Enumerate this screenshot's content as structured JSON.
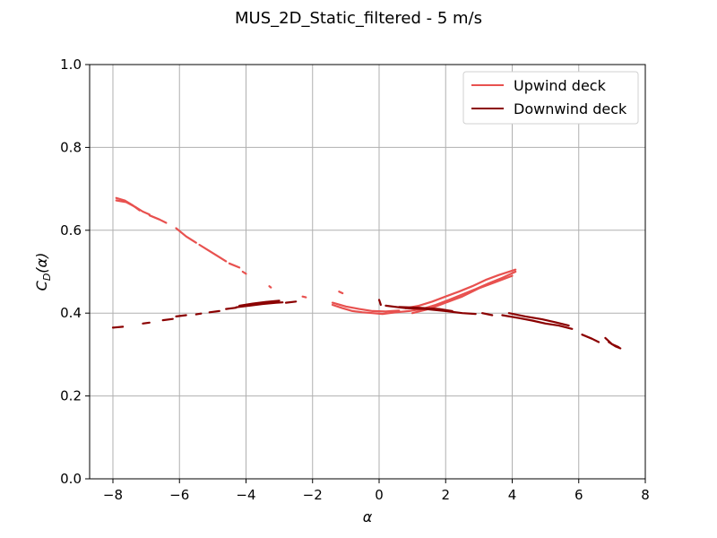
{
  "chart_data": {
    "type": "line",
    "title": "MUS_2D_Static_filtered - 5 m/s",
    "xlabel": "α",
    "ylabel_main": "C",
    "ylabel_sub": "D",
    "ylabel_arg": "(α)",
    "xlim": [
      -8.7,
      8
    ],
    "ylim": [
      0,
      1
    ],
    "xticks": [
      -8,
      -6,
      -4,
      -2,
      0,
      2,
      4,
      6,
      8
    ],
    "xtick_labels": [
      "−8",
      "−6",
      "−4",
      "−2",
      "0",
      "2",
      "4",
      "6",
      "8"
    ],
    "yticks": [
      0,
      0.2,
      0.4,
      0.6,
      0.8,
      1.0
    ],
    "ytick_labels": [
      "0.0",
      "0.2",
      "0.4",
      "0.6",
      "0.8",
      "1.0"
    ],
    "grid": true,
    "legend_position": "top-right",
    "series": [
      {
        "name": "Upwind deck",
        "color": "#e8514f",
        "segments": [
          [
            [
              -7.9,
              0.672
            ],
            [
              -7.6,
              0.668
            ],
            [
              -7.3,
              0.655
            ],
            [
              -7.1,
              0.645
            ],
            [
              -6.9,
              0.638
            ]
          ],
          [
            [
              -7.9,
              0.678
            ],
            [
              -7.65,
              0.672
            ],
            [
              -7.4,
              0.66
            ],
            [
              -7.2,
              0.648
            ]
          ],
          [
            [
              -6.9,
              0.636
            ],
            [
              -6.6,
              0.626
            ],
            [
              -6.4,
              0.618
            ]
          ],
          [
            [
              -6.1,
              0.605
            ],
            [
              -5.8,
              0.585
            ],
            [
              -5.5,
              0.57
            ]
          ],
          [
            [
              -5.4,
              0.565
            ],
            [
              -5.1,
              0.55
            ],
            [
              -4.8,
              0.535
            ],
            [
              -4.6,
              0.525
            ]
          ],
          [
            [
              -4.5,
              0.52
            ],
            [
              -4.2,
              0.51
            ]
          ],
          [
            [
              -4.1,
              0.5
            ],
            [
              -4.0,
              0.495
            ]
          ],
          [
            [
              -3.3,
              0.465
            ],
            [
              -3.25,
              0.462
            ]
          ],
          [
            [
              -2.3,
              0.44
            ],
            [
              -2.2,
              0.438
            ]
          ],
          [
            [
              -1.2,
              0.452
            ],
            [
              -1.1,
              0.448
            ]
          ],
          [
            [
              -1.4,
              0.42
            ],
            [
              -1.1,
              0.412
            ],
            [
              -0.8,
              0.405
            ],
            [
              -0.5,
              0.402
            ],
            [
              -0.2,
              0.4
            ],
            [
              0.1,
              0.398
            ],
            [
              0.5,
              0.402
            ],
            [
              0.9,
              0.405
            ]
          ],
          [
            [
              -1.4,
              0.425
            ],
            [
              -1.0,
              0.416
            ],
            [
              -0.6,
              0.41
            ],
            [
              -0.2,
              0.405
            ],
            [
              0.2,
              0.404
            ],
            [
              0.6,
              0.406
            ]
          ],
          [
            [
              0.9,
              0.405
            ],
            [
              1.3,
              0.41
            ],
            [
              1.7,
              0.42
            ],
            [
              2.1,
              0.432
            ],
            [
              2.5,
              0.445
            ],
            [
              2.9,
              0.458
            ],
            [
              3.3,
              0.472
            ],
            [
              3.7,
              0.485
            ],
            [
              4.1,
              0.5
            ]
          ],
          [
            [
              0.8,
              0.412
            ],
            [
              1.2,
              0.418
            ],
            [
              1.6,
              0.428
            ],
            [
              2.0,
              0.44
            ],
            [
              2.4,
              0.452
            ],
            [
              2.8,
              0.465
            ],
            [
              3.2,
              0.48
            ],
            [
              3.6,
              0.492
            ],
            [
              4.1,
              0.505
            ]
          ],
          [
            [
              1.0,
              0.4
            ],
            [
              1.5,
              0.41
            ],
            [
              2.0,
              0.425
            ],
            [
              2.5,
              0.44
            ],
            [
              3.0,
              0.46
            ],
            [
              3.5,
              0.475
            ],
            [
              4.0,
              0.49
            ]
          ]
        ]
      },
      {
        "name": "Downwind deck",
        "color": "#8b0000",
        "segments": [
          [
            [
              -8.0,
              0.365
            ],
            [
              -7.7,
              0.367
            ]
          ],
          [
            [
              -7.1,
              0.375
            ],
            [
              -6.9,
              0.377
            ]
          ],
          [
            [
              -6.5,
              0.383
            ],
            [
              -6.2,
              0.386
            ]
          ],
          [
            [
              -6.1,
              0.392
            ],
            [
              -5.8,
              0.395
            ]
          ],
          [
            [
              -5.5,
              0.397
            ],
            [
              -5.35,
              0.399
            ]
          ],
          [
            [
              -5.1,
              0.402
            ],
            [
              -4.8,
              0.405
            ]
          ],
          [
            [
              -4.6,
              0.41
            ],
            [
              -4.3,
              0.413
            ]
          ],
          [
            [
              -4.3,
              0.414
            ],
            [
              -3.9,
              0.418
            ],
            [
              -3.5,
              0.422
            ],
            [
              -3.1,
              0.425
            ],
            [
              -2.9,
              0.426
            ]
          ],
          [
            [
              -4.2,
              0.418
            ],
            [
              -3.8,
              0.423
            ],
            [
              -3.4,
              0.427
            ],
            [
              -3.0,
              0.43
            ]
          ],
          [
            [
              -2.8,
              0.425
            ],
            [
              -2.5,
              0.428
            ]
          ],
          [
            [
              0.0,
              0.432
            ],
            [
              0.05,
              0.42
            ]
          ],
          [
            [
              0.2,
              0.418
            ],
            [
              0.8,
              0.412
            ],
            [
              1.4,
              0.41
            ],
            [
              2.0,
              0.405
            ],
            [
              2.5,
              0.4
            ],
            [
              2.9,
              0.398
            ]
          ],
          [
            [
              0.6,
              0.415
            ],
            [
              1.2,
              0.413
            ],
            [
              1.8,
              0.41
            ],
            [
              2.2,
              0.405
            ]
          ],
          [
            [
              3.1,
              0.4
            ],
            [
              3.4,
              0.395
            ]
          ],
          [
            [
              3.7,
              0.395
            ],
            [
              4.2,
              0.388
            ],
            [
              4.6,
              0.382
            ],
            [
              5.0,
              0.375
            ],
            [
              5.4,
              0.37
            ],
            [
              5.8,
              0.362
            ]
          ],
          [
            [
              3.9,
              0.4
            ],
            [
              4.4,
              0.392
            ],
            [
              4.9,
              0.385
            ],
            [
              5.3,
              0.378
            ],
            [
              5.7,
              0.37
            ]
          ],
          [
            [
              6.1,
              0.348
            ],
            [
              6.4,
              0.338
            ],
            [
              6.6,
              0.33
            ]
          ],
          [
            [
              6.8,
              0.34
            ],
            [
              7.0,
              0.325
            ],
            [
              7.2,
              0.318
            ]
          ],
          [
            [
              6.9,
              0.33
            ],
            [
              7.1,
              0.32
            ],
            [
              7.25,
              0.315
            ]
          ]
        ]
      }
    ]
  }
}
